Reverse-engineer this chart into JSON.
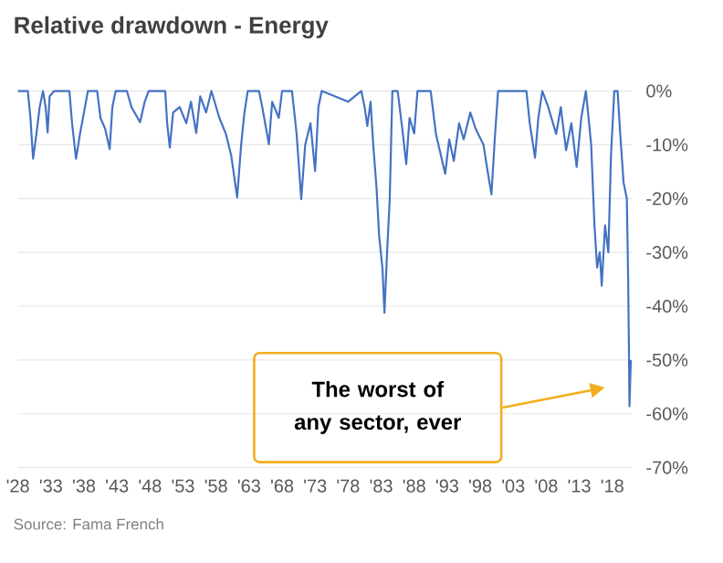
{
  "chart_data": {
    "type": "line",
    "title": "Relative drawdown - Energy",
    "annotations": [
      "The worst of any sector, ever",
      "Source: Fama French"
    ],
    "xlim": [
      1928,
      2021
    ],
    "ylim": [
      -70,
      0
    ],
    "xticks": [
      {
        "value": 1928,
        "label": "'28"
      },
      {
        "value": 1933,
        "label": "'33"
      },
      {
        "value": 1938,
        "label": "'38"
      },
      {
        "value": 1943,
        "label": "'43"
      },
      {
        "value": 1948,
        "label": "'48"
      },
      {
        "value": 1953,
        "label": "'53"
      },
      {
        "value": 1958,
        "label": "'58"
      },
      {
        "value": 1963,
        "label": "'63"
      },
      {
        "value": 1968,
        "label": "'68"
      },
      {
        "value": 1973,
        "label": "'73"
      },
      {
        "value": 1978,
        "label": "'78"
      },
      {
        "value": 1983,
        "label": "'83"
      },
      {
        "value": 1988,
        "label": "'88"
      },
      {
        "value": 1993,
        "label": "'93"
      },
      {
        "value": 1998,
        "label": "'98"
      },
      {
        "value": 2003,
        "label": "'03"
      },
      {
        "value": 2008,
        "label": "'08"
      },
      {
        "value": 2013,
        "label": "'13"
      },
      {
        "value": 2018,
        "label": "'18"
      }
    ],
    "yticks": [
      {
        "value": 0,
        "label": "0%"
      },
      {
        "value": -10,
        "label": "-10%"
      },
      {
        "value": -20,
        "label": "-20%"
      },
      {
        "value": -30,
        "label": "-30%"
      },
      {
        "value": -40,
        "label": "-40%"
      },
      {
        "value": -50,
        "label": "-50%"
      },
      {
        "value": -60,
        "label": "-60%"
      },
      {
        "value": -70,
        "label": "-70%"
      }
    ],
    "grid": "y",
    "series": [
      {
        "color": "#4472c4",
        "x": [
          1928,
          1929.5,
          1929.9,
          1930.3,
          1930.8,
          1931.3,
          1931.8,
          1932.2,
          1932.5,
          1932.8,
          1933.5,
          1935.8,
          1936.2,
          1936.8,
          1937.4,
          1938,
          1938.6,
          1940,
          1940.5,
          1941.2,
          1941.9,
          1942.3,
          1942.8,
          1944.5,
          1945.2,
          1946.5,
          1947.2,
          1947.8,
          1950.3,
          1950.6,
          1951,
          1951.5,
          1952.5,
          1953.5,
          1954.2,
          1955,
          1955.6,
          1956.5,
          1957.3,
          1958.5,
          1959.5,
          1960.3,
          1961.2,
          1961.8,
          1962.3,
          1962.8,
          1964.5,
          1965,
          1966,
          1966.5,
          1967.5,
          1968,
          1969.5,
          1970.2,
          1970.9,
          1971.5,
          1972.3,
          1973,
          1973.5,
          1974,
          1976,
          1978,
          1979,
          1980,
          1980.5,
          1980.9,
          1981.4,
          1981.8,
          1982.3,
          1982.7,
          1983.2,
          1983.5,
          1983.9,
          1984.3,
          1984.7,
          1985.5,
          1986.2,
          1986.8,
          1987.3,
          1988,
          1988.5,
          1990.5,
          1991.3,
          1992.7,
          1993.3,
          1994,
          1994.8,
          1995.5,
          1996.5,
          1997.3,
          1998.5,
          1999,
          1999.7,
          2000.2,
          2000.7,
          2005,
          2005.5,
          2006.3,
          2006.8,
          2007.4,
          2008.3,
          2009.5,
          2010.2,
          2011,
          2011.8,
          2012.6,
          2013.3,
          2014,
          2014.8,
          2015.3,
          2015.7,
          2016.1,
          2016.4,
          2016.9,
          2017.4,
          2017.8,
          2018.3,
          2018.8,
          2019.2,
          2019.7,
          2020.2,
          2020.4,
          2020.5,
          2020.6,
          2020.8
        ],
        "values": [
          0,
          0,
          -5,
          -12.6,
          -8,
          -3,
          0,
          -3,
          -7.7,
          -1,
          0,
          0,
          -6,
          -12.6,
          -8,
          -4,
          0,
          0,
          -5,
          -7,
          -10.8,
          -3,
          0,
          0,
          -3,
          -5.8,
          -2,
          0,
          0,
          -6,
          -10.5,
          -4,
          -3,
          -6,
          -2,
          -7.8,
          -1,
          -4,
          0,
          -5,
          -8,
          -12,
          -19.8,
          -10,
          -4,
          0,
          0,
          -3,
          -9.9,
          -2,
          -5,
          0,
          0,
          -8,
          -20.1,
          -10,
          -6,
          -14.9,
          -3,
          0,
          -1,
          -2,
          -1,
          0,
          -3,
          -6.5,
          -2,
          -10,
          -18,
          -27,
          -33,
          -41.2,
          -30,
          -20,
          0,
          0,
          -7,
          -13.6,
          -5,
          -7.9,
          0,
          0,
          -8,
          -15.4,
          -9,
          -13,
          -6,
          -9,
          -4,
          -7,
          -10,
          -14,
          -19.2,
          -9,
          0,
          0,
          -6,
          -12.4,
          -5,
          0,
          -3,
          -8,
          -3,
          -11,
          -6,
          -14.1,
          -5,
          0,
          -10,
          -25,
          -32.8,
          -30,
          -36.2,
          -25,
          -30,
          -12,
          0,
          0,
          -8,
          -17,
          -20,
          -35,
          -46,
          -58.6,
          -50
        ]
      }
    ]
  }
}
